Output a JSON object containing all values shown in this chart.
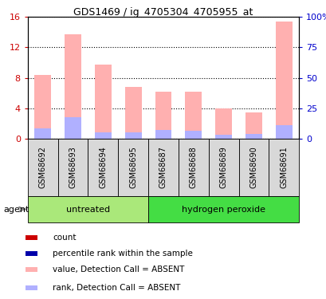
{
  "title": "GDS1469 / ig_4705304_4705955_at",
  "samples": [
    "GSM68692",
    "GSM68693",
    "GSM68694",
    "GSM68695",
    "GSM68687",
    "GSM68688",
    "GSM68689",
    "GSM68690",
    "GSM68691"
  ],
  "pink_values": [
    8.4,
    13.7,
    9.7,
    6.8,
    6.2,
    6.2,
    4.0,
    3.5,
    15.3
  ],
  "blue_values": [
    1.4,
    2.9,
    0.9,
    0.9,
    1.2,
    1.1,
    0.6,
    0.7,
    1.8
  ],
  "ylim_left": [
    0,
    16
  ],
  "ylim_right": [
    0,
    100
  ],
  "yticks_left": [
    0,
    4,
    8,
    12,
    16
  ],
  "yticks_right": [
    0,
    25,
    50,
    75,
    100
  ],
  "ytick_labels_right": [
    "0",
    "25",
    "50",
    "75",
    "100%"
  ],
  "ytick_labels_left": [
    "0",
    "4",
    "8",
    "12",
    "16"
  ],
  "bar_width": 0.55,
  "pink_color": "#ffb0b0",
  "blue_color": "#b0b0ff",
  "tick_color_left": "#cc0000",
  "tick_color_right": "#0000cc",
  "group_untreated_color": "#aae87a",
  "group_peroxide_color": "#44dd44",
  "sample_box_color": "#d8d8d8",
  "untreated_count": 4,
  "peroxide_count": 5,
  "legend_items": [
    {
      "label": "count",
      "color": "#cc0000"
    },
    {
      "label": "percentile rank within the sample",
      "color": "#0000aa"
    },
    {
      "label": "value, Detection Call = ABSENT",
      "color": "#ffb0b0"
    },
    {
      "label": "rank, Detection Call = ABSENT",
      "color": "#b0b0ff"
    }
  ]
}
